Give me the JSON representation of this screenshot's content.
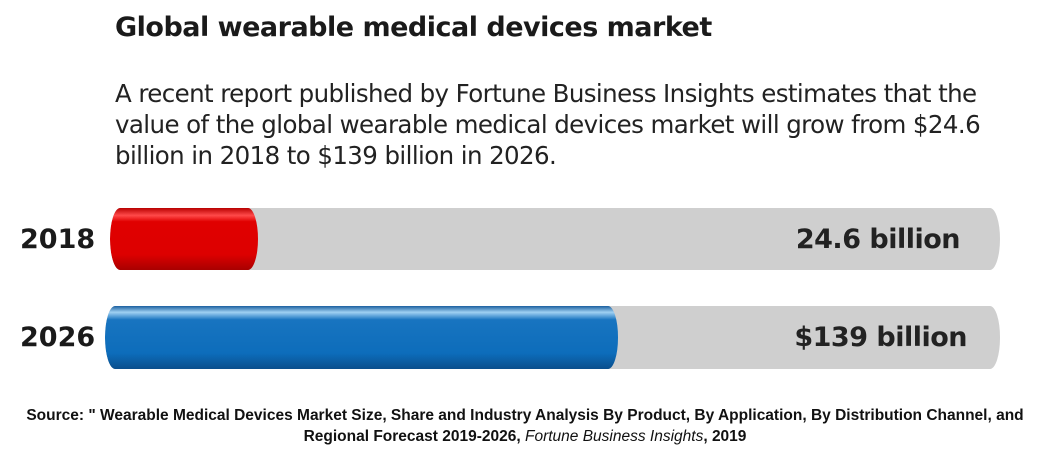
{
  "title": "Global wearable medical devices market",
  "intro": "A recent report published by Fortune Business Insights estimates that the value of the global wearable medical devices market will grow from $24.6 billion in 2018 to $139 billion in 2026.",
  "chart_data": {
    "type": "bar",
    "orientation": "horizontal",
    "categories": [
      "2018",
      "2026"
    ],
    "values": [
      24.6,
      139
    ],
    "unit": "billion USD",
    "fill_fraction": [
      0.166,
      0.573
    ],
    "value_labels": [
      "24.6 billion",
      "$139 billion"
    ],
    "colors": [
      "#dd0000",
      "#0d6dbb"
    ],
    "track_color": "#cfcfcf"
  },
  "source": {
    "prefix": "Source: \" Wearable Medical Devices Market Size, Share and Industry Analysis By Product, By Application, By Distribution Channel, and Regional Forecast 2019-2026, ",
    "publisher": "Fortune Business Insights",
    "year": ", 2019"
  }
}
